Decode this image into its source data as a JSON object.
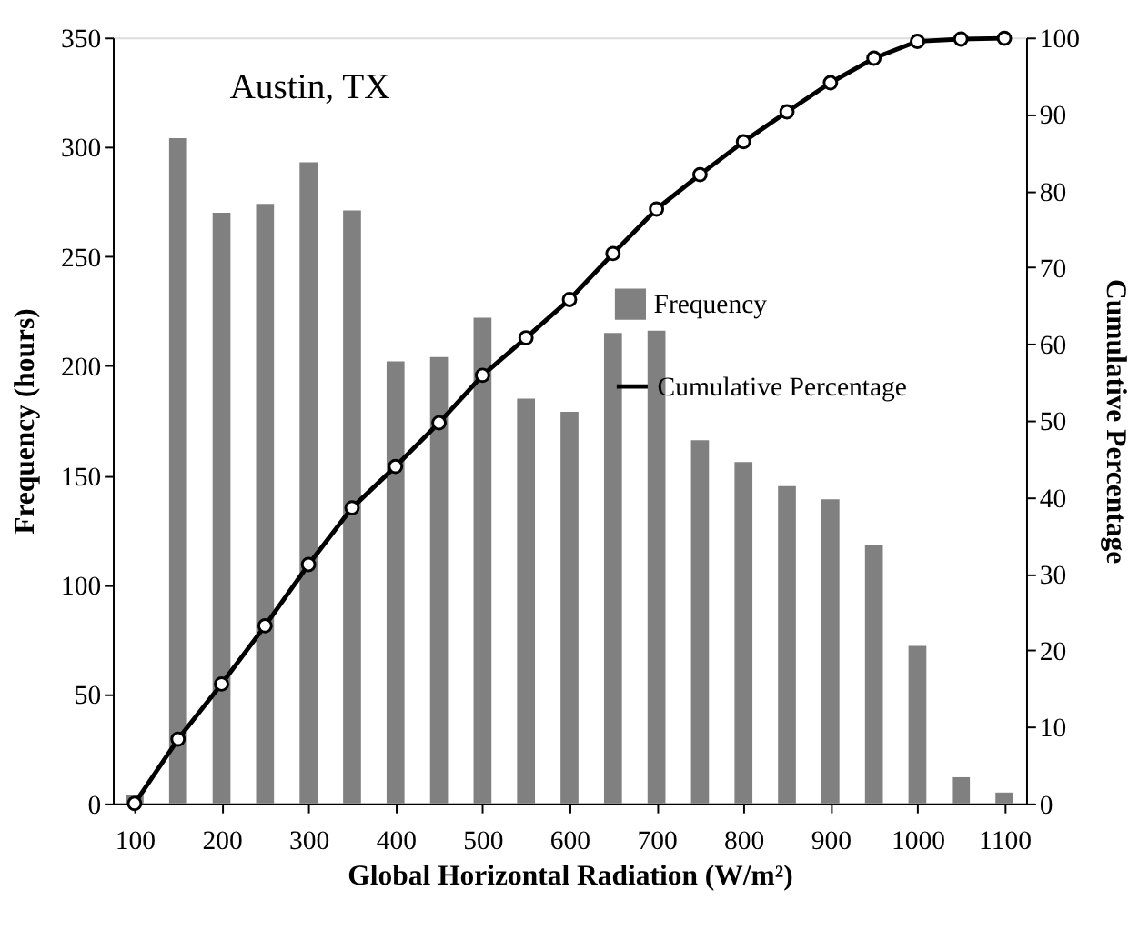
{
  "chart_data": {
    "type": "bar",
    "xlabel": "Global Horizontal Radiation (W/m²)",
    "ylabel": "Frequency (hours)",
    "y2label": "Cumulative Percentage",
    "annotations": [
      "Austin, TX"
    ],
    "x": [
      100,
      150,
      200,
      250,
      300,
      350,
      400,
      450,
      500,
      550,
      600,
      650,
      700,
      750,
      800,
      850,
      900,
      950,
      1000,
      1050,
      1100
    ],
    "xlim": [
      75,
      1125
    ],
    "xticks": [
      100,
      200,
      300,
      400,
      500,
      600,
      700,
      800,
      900,
      1000,
      1100
    ],
    "ylim": [
      0,
      350
    ],
    "yticks": [
      0,
      50,
      100,
      150,
      200,
      250,
      300,
      350
    ],
    "y2lim": [
      0,
      100
    ],
    "y2ticks": [
      0,
      10,
      20,
      30,
      40,
      50,
      60,
      70,
      80,
      90,
      100
    ],
    "legend": "right",
    "grid": false,
    "series": [
      {
        "name": "Frequency",
        "type": "bar",
        "color": "#808080",
        "values": [
          4,
          304,
          270,
          274,
          293,
          271,
          202,
          204,
          222,
          185,
          179,
          215,
          216,
          166,
          156,
          145,
          139,
          118,
          72,
          12,
          5
        ]
      },
      {
        "name": "Cumulative Percentage",
        "type": "line",
        "axis": "y2",
        "color": "#000000",
        "marker": "circle",
        "line_style": "solid",
        "values": [
          0,
          8.4,
          15.6,
          23.2,
          31.2,
          38.6,
          44.0,
          49.7,
          55.9,
          60.8,
          65.8,
          71.8,
          77.6,
          82.1,
          86.4,
          90.3,
          94.1,
          97.3,
          99.5,
          99.8,
          99.9
        ]
      }
    ]
  }
}
